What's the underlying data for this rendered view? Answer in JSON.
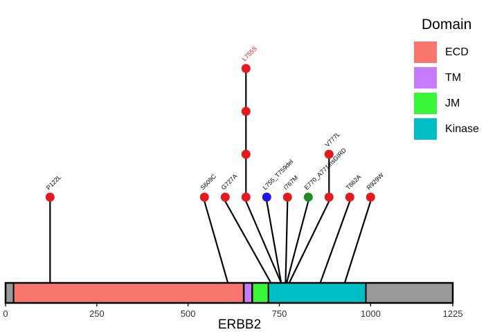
{
  "chart_data": {
    "type": "lollipop",
    "gene": "ERBB2",
    "xlabel": "ERBB2",
    "xlim": [
      0,
      1225
    ],
    "xticks": [
      0,
      250,
      500,
      750,
      1000,
      1225
    ],
    "protein_length": 1225,
    "legend": {
      "title": "Domain",
      "placement": "right",
      "entries": [
        {
          "name": "ECD",
          "color": "#f8766d"
        },
        {
          "name": "TM",
          "color": "#c77cff"
        },
        {
          "name": "JM",
          "color": "#3bf53b"
        },
        {
          "name": "Kinase",
          "color": "#00bfc4"
        }
      ]
    },
    "backbone_color": "#999999",
    "domains": [
      {
        "name": "ECD",
        "start": 22,
        "end": 652,
        "color": "#f8766d"
      },
      {
        "name": "TM",
        "start": 653,
        "end": 675,
        "color": "#c77cff"
      },
      {
        "name": "JM",
        "start": 676,
        "end": 720,
        "color": "#3bf53b"
      },
      {
        "name": "Kinase",
        "start": 720,
        "end": 987,
        "color": "#00bfc4"
      }
    ],
    "mutations": [
      {
        "label": "P122L",
        "position": 122,
        "count": 1,
        "color": "#e41a1c",
        "label_color": "#000000"
      },
      {
        "label": "S609C",
        "position": 609,
        "count": 1,
        "color": "#e41a1c",
        "label_color": "#000000"
      },
      {
        "label": "G727A",
        "position": 727,
        "count": 1,
        "color": "#e41a1c",
        "label_color": "#000000"
      },
      {
        "label": "L755S",
        "position": 755,
        "count": 4,
        "color": "#e41a1c",
        "label_color": "#e41a1c"
      },
      {
        "label": "L755_T759del",
        "position": 755,
        "count": 1,
        "color": "#1a1ae4",
        "label_color": "#000000"
      },
      {
        "label": "I767M",
        "position": 767,
        "count": 1,
        "color": "#e41a1c",
        "label_color": "#000000"
      },
      {
        "label": "E770_A771insGIRD",
        "position": 770,
        "count": 1,
        "color": "#1f8a1f",
        "label_color": "#000000"
      },
      {
        "label": "V777L",
        "position": 777,
        "count": 2,
        "color": "#e41a1c",
        "label_color": "#000000"
      },
      {
        "label": "T862A",
        "position": 862,
        "count": 1,
        "color": "#e41a1c",
        "label_color": "#000000"
      },
      {
        "label": "R929W",
        "position": 929,
        "count": 1,
        "color": "#e41a1c",
        "label_color": "#000000"
      }
    ]
  }
}
